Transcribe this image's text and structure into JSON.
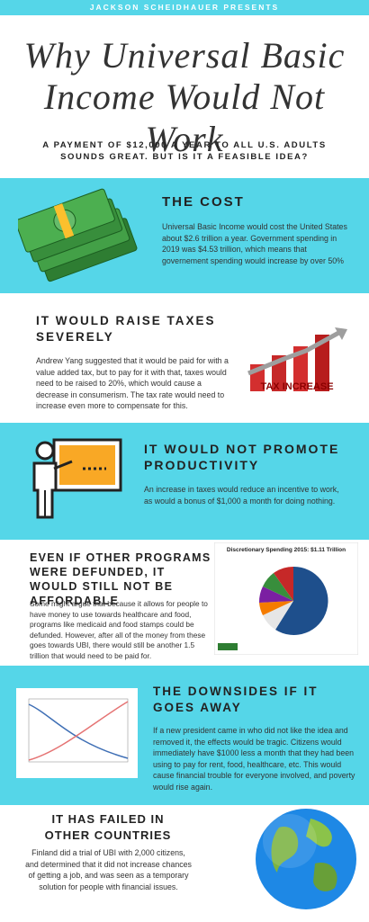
{
  "header": {
    "presenter": "JACKSON SCHEIDHAUER PRESENTS",
    "title_lines": [
      "Why Universal Basic",
      "Income Would Not Work"
    ],
    "subtitle": "A PAYMENT OF $12,000 A YEAR TO ALL U.S. ADULTS SOUNDS GREAT. BUT IS IT A FEASIBLE IDEA?"
  },
  "sections": [
    {
      "heading": "THE COST",
      "body": "Universal Basic Income would cost the United States about $2.6 trillion a year. Government spending in 2019 was $4.53 trillion, which means that governement spending would increase by over 50%"
    },
    {
      "heading": "IT WOULD RAISE TAXES SEVERELY",
      "body": "Andrew Yang suggested that it would be paid for with a value added tax, but to pay for it with that, taxes would need to be raised to 20%, which would cause a decrease in consumerism. The tax rate would need to increase even more to compensate for this.",
      "image_label": "TAX INCREASE"
    },
    {
      "heading": "IT WOULD NOT PROMOTE PRODUCTIVITY",
      "body": "An increase in taxes would reduce an incentive to work, as would a bonus of $1,000 a month for doing nothing."
    },
    {
      "heading": "EVEN IF OTHER PROGRAMS WERE DEFUNDED, IT WOULD STILL NOT BE AFFORDABLE",
      "body": "Some might argue that because it allows for people to have money to use towards healthcare and food, programs like medicaid and food stamps could be defunded. However, after all of the money from these goes towards UBI, there would still be another 1.5 trillion that would need to be paid for.",
      "image_label": "Discretionary Spending 2015: $1.11 Trillion"
    },
    {
      "heading": "THE DOWNSIDES IF IT GOES AWAY",
      "body": "If a new president came in who did not like the idea and removed it, the effects would be tragic. Citizens would immediately have $1000 less a month that they had been using to pay for rent, food, healthcare, etc. This would cause financial trouble for everyone involved, and poverty would rise again."
    },
    {
      "heading": "IT HAS FAILED IN OTHER COUNTRIES",
      "body": "Finland did a trial of UBI with 2,000 citizens, and determined that it did not increase chances of getting a job, and was seen as a temporary solution for people with financial issues."
    }
  ]
}
